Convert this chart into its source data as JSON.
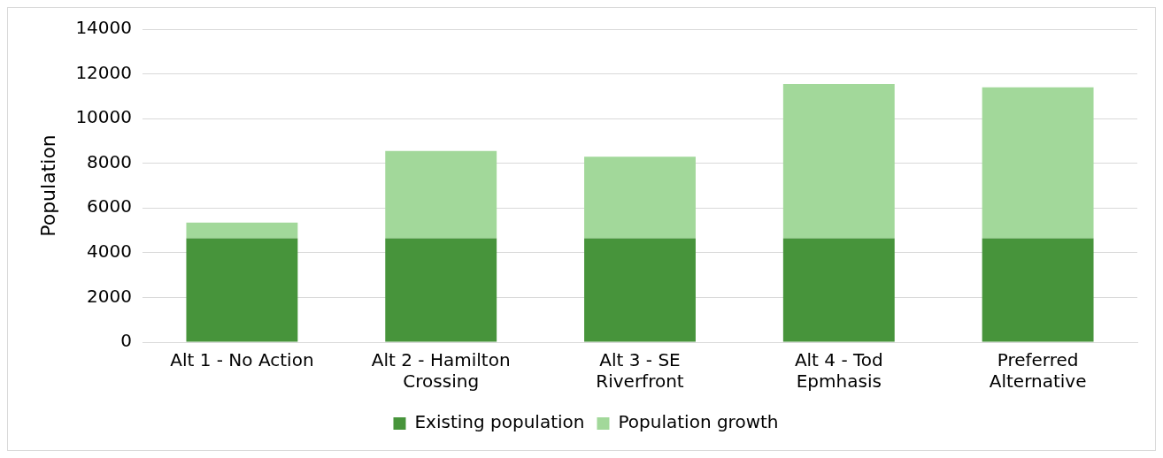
{
  "chart_data": {
    "type": "bar",
    "stacked": true,
    "ylabel": "Population",
    "categories": [
      "Alt 1 - No Action",
      "Alt 2 - Hamilton Crossing",
      "Alt 3 - SE Riverfront",
      "Alt 4 - Tod Epmhasis",
      "Preferred Alternative"
    ],
    "series": [
      {
        "name": "Existing population",
        "color": "#47943b",
        "values": [
          4650,
          4650,
          4650,
          4650,
          4650
        ]
      },
      {
        "name": "Population growth",
        "color": "#a2d89a",
        "values": [
          700,
          3900,
          3650,
          6900,
          6750
        ]
      }
    ],
    "ylim": [
      0,
      14000
    ],
    "yticks": [
      0,
      2000,
      4000,
      6000,
      8000,
      10000,
      12000,
      14000
    ],
    "grid": "y",
    "legend": "bottom"
  }
}
